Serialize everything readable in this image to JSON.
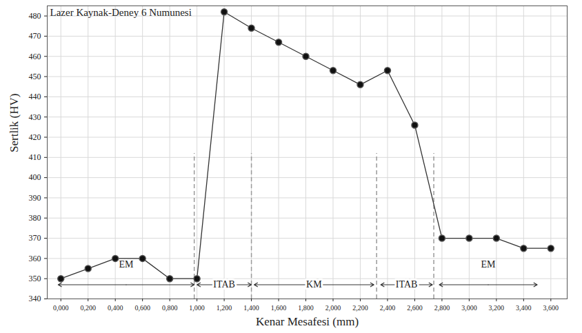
{
  "chart_data": {
    "type": "line",
    "title": "Lazer Kaynak-Deney 6 Numunesi",
    "x_label": "Kenar Mesafesi (mm)",
    "y_label": "Sertlik (HV)",
    "x": [
      0,
      0.2,
      0.4,
      0.6,
      0.8,
      1.0,
      1.2,
      1.4,
      1.6,
      1.8,
      2.0,
      2.2,
      2.4,
      2.6,
      2.8,
      3.0,
      3.2,
      3.4,
      3.6
    ],
    "values": [
      350,
      355,
      360,
      360,
      350,
      350,
      482,
      474,
      467,
      460,
      453,
      446,
      453,
      426,
      370,
      370,
      370,
      365,
      365
    ],
    "color": "#333333",
    "marker": "circle",
    "line_style": "solid",
    "xlim": [
      -0.1,
      3.72
    ],
    "xticks": [
      {
        "value": 0,
        "label": "0,000"
      },
      {
        "value": 0.2,
        "label": "0,200"
      },
      {
        "value": 0.4,
        "label": "0,400"
      },
      {
        "value": 0.6,
        "label": "0,600"
      },
      {
        "value": 0.8,
        "label": "0,800"
      },
      {
        "value": 1.0,
        "label": "1,000"
      },
      {
        "value": 1.2,
        "label": "1,200"
      },
      {
        "value": 1.4,
        "label": "1,400"
      },
      {
        "value": 1.6,
        "label": "1,600"
      },
      {
        "value": 1.8,
        "label": "1,800"
      },
      {
        "value": 2.0,
        "label": "2,000"
      },
      {
        "value": 2.2,
        "label": "2,200"
      },
      {
        "value": 2.4,
        "label": "2,400"
      },
      {
        "value": 2.6,
        "label": "2,600"
      },
      {
        "value": 2.8,
        "label": "2,800"
      },
      {
        "value": 3.0,
        "label": "3,000"
      },
      {
        "value": 3.2,
        "label": "3,200"
      },
      {
        "value": 3.4,
        "label": "3,400"
      },
      {
        "value": 3.6,
        "label": "3,600"
      }
    ],
    "ylim": [
      340,
      485
    ],
    "yticks": [
      340,
      350,
      360,
      370,
      380,
      390,
      400,
      410,
      420,
      430,
      440,
      450,
      460,
      470,
      480
    ],
    "grid": true,
    "boundaries": [
      0.98,
      1.4,
      2.32,
      2.74
    ],
    "boundary_top": 412,
    "zones": [
      {
        "label": "EM",
        "from": -0.02,
        "to": 0.98,
        "y": 347,
        "label_y": 357
      },
      {
        "label": "ITAB",
        "from": 1.0,
        "to": 1.4,
        "y": 347,
        "label_y": 347
      },
      {
        "label": "KM",
        "from": 1.42,
        "to": 2.3,
        "y": 347,
        "label_y": 347
      },
      {
        "label": "ITAB",
        "from": 2.35,
        "to": 2.73,
        "y": 347,
        "label_y": 347
      },
      {
        "label": "EM",
        "from": 2.78,
        "to": 3.5,
        "y": 347,
        "label_y": 357
      }
    ]
  }
}
